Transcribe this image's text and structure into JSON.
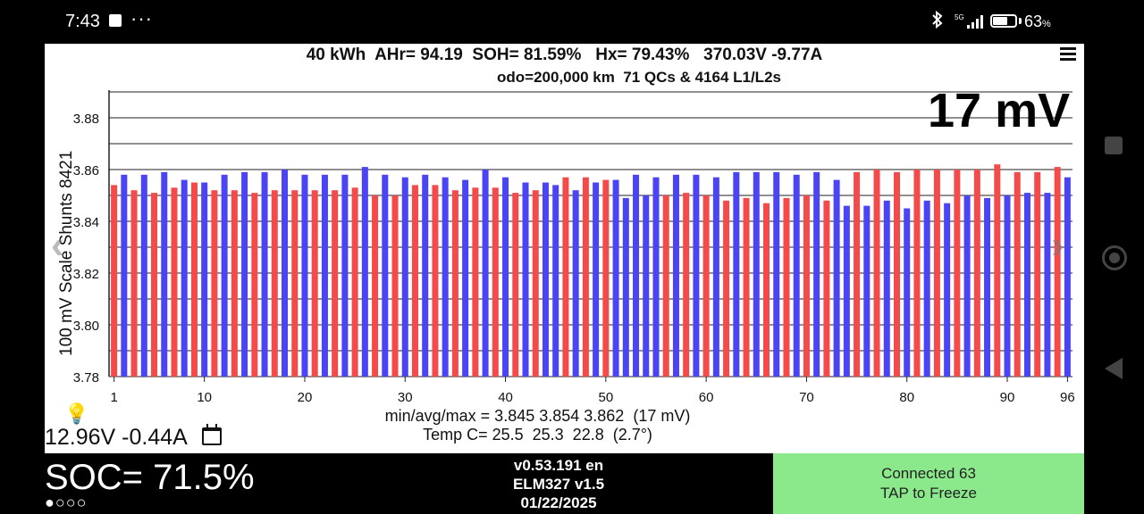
{
  "status_bar": {
    "time": "7:43",
    "overflow": "···",
    "network": "5G",
    "battery_pct": "63",
    "battery_unit": "%",
    "battery_level": 0.63
  },
  "header": {
    "line1": "40 kWh  AHr= 94.19  SOH= 81.59%   Hx= 79.43%   370.03V -9.77A",
    "line2": "odo=200,000 km  71 QCs & 4164 L1/L2s",
    "spread": "17 mV"
  },
  "chart_data": {
    "type": "bar",
    "title": "",
    "ylabel": "100 mV Scale  Shunts 8421",
    "xlabel": "",
    "ylim": [
      3.78,
      3.89
    ],
    "yticks": [
      "3.88",
      "3.86",
      "3.84",
      "3.82",
      "3.80",
      "3.78"
    ],
    "xticks": [
      "1",
      "10",
      "20",
      "30",
      "40",
      "50",
      "60",
      "70",
      "80",
      "90",
      "96"
    ],
    "highlight_colors": {
      "shunt": "#f44a4a",
      "normal": "#4a44f4"
    },
    "values": [
      3.854,
      3.858,
      3.852,
      3.858,
      3.851,
      3.859,
      3.853,
      3.856,
      3.855,
      3.855,
      3.852,
      3.858,
      3.852,
      3.859,
      3.851,
      3.859,
      3.852,
      3.86,
      3.852,
      3.858,
      3.852,
      3.858,
      3.852,
      3.858,
      3.853,
      3.861,
      3.85,
      3.858,
      3.85,
      3.857,
      3.854,
      3.858,
      3.854,
      3.857,
      3.852,
      3.856,
      3.853,
      3.86,
      3.853,
      3.857,
      3.851,
      3.855,
      3.852,
      3.855,
      3.854,
      3.857,
      3.852,
      3.857,
      3.855,
      3.856,
      3.856,
      3.849,
      3.858,
      3.85,
      3.857,
      3.85,
      3.858,
      3.851,
      3.858,
      3.85,
      3.857,
      3.848,
      3.859,
      3.849,
      3.859,
      3.847,
      3.859,
      3.849,
      3.858,
      3.85,
      3.859,
      3.848,
      3.856,
      3.846,
      3.859,
      3.846,
      3.86,
      3.848,
      3.859,
      3.845,
      3.86,
      3.848,
      3.86,
      3.847,
      3.86,
      3.85,
      3.86,
      3.849,
      3.862,
      3.85,
      3.859,
      3.851,
      3.859,
      3.851,
      3.861,
      3.857
    ],
    "shunt_cells": [
      1,
      3,
      5,
      7,
      9,
      11,
      13,
      15,
      17,
      19,
      21,
      23,
      25,
      27,
      29,
      31,
      33,
      35,
      37,
      39,
      41,
      43,
      46,
      48,
      50,
      56,
      58,
      60,
      62,
      64,
      66,
      68,
      70,
      72,
      75,
      77,
      79,
      81,
      83,
      85,
      87,
      89,
      91,
      93,
      95
    ]
  },
  "footer": {
    "aux_voltage": "12.96V -0.44A",
    "stats_line1": "min/avg/max = 3.845 3.854 3.862  (17 mV)",
    "stats_line2": "Temp C= 25.5  25.3  22.8  (2.7°)",
    "soc": "SOC= 71.5%",
    "soc_dots": "●○○○",
    "version": "v0.53.191 en",
    "adapter": "ELM327 v1.5",
    "date": "01/22/2025",
    "conn_line1": "Connected 63",
    "conn_line2": "TAP to Freeze"
  }
}
